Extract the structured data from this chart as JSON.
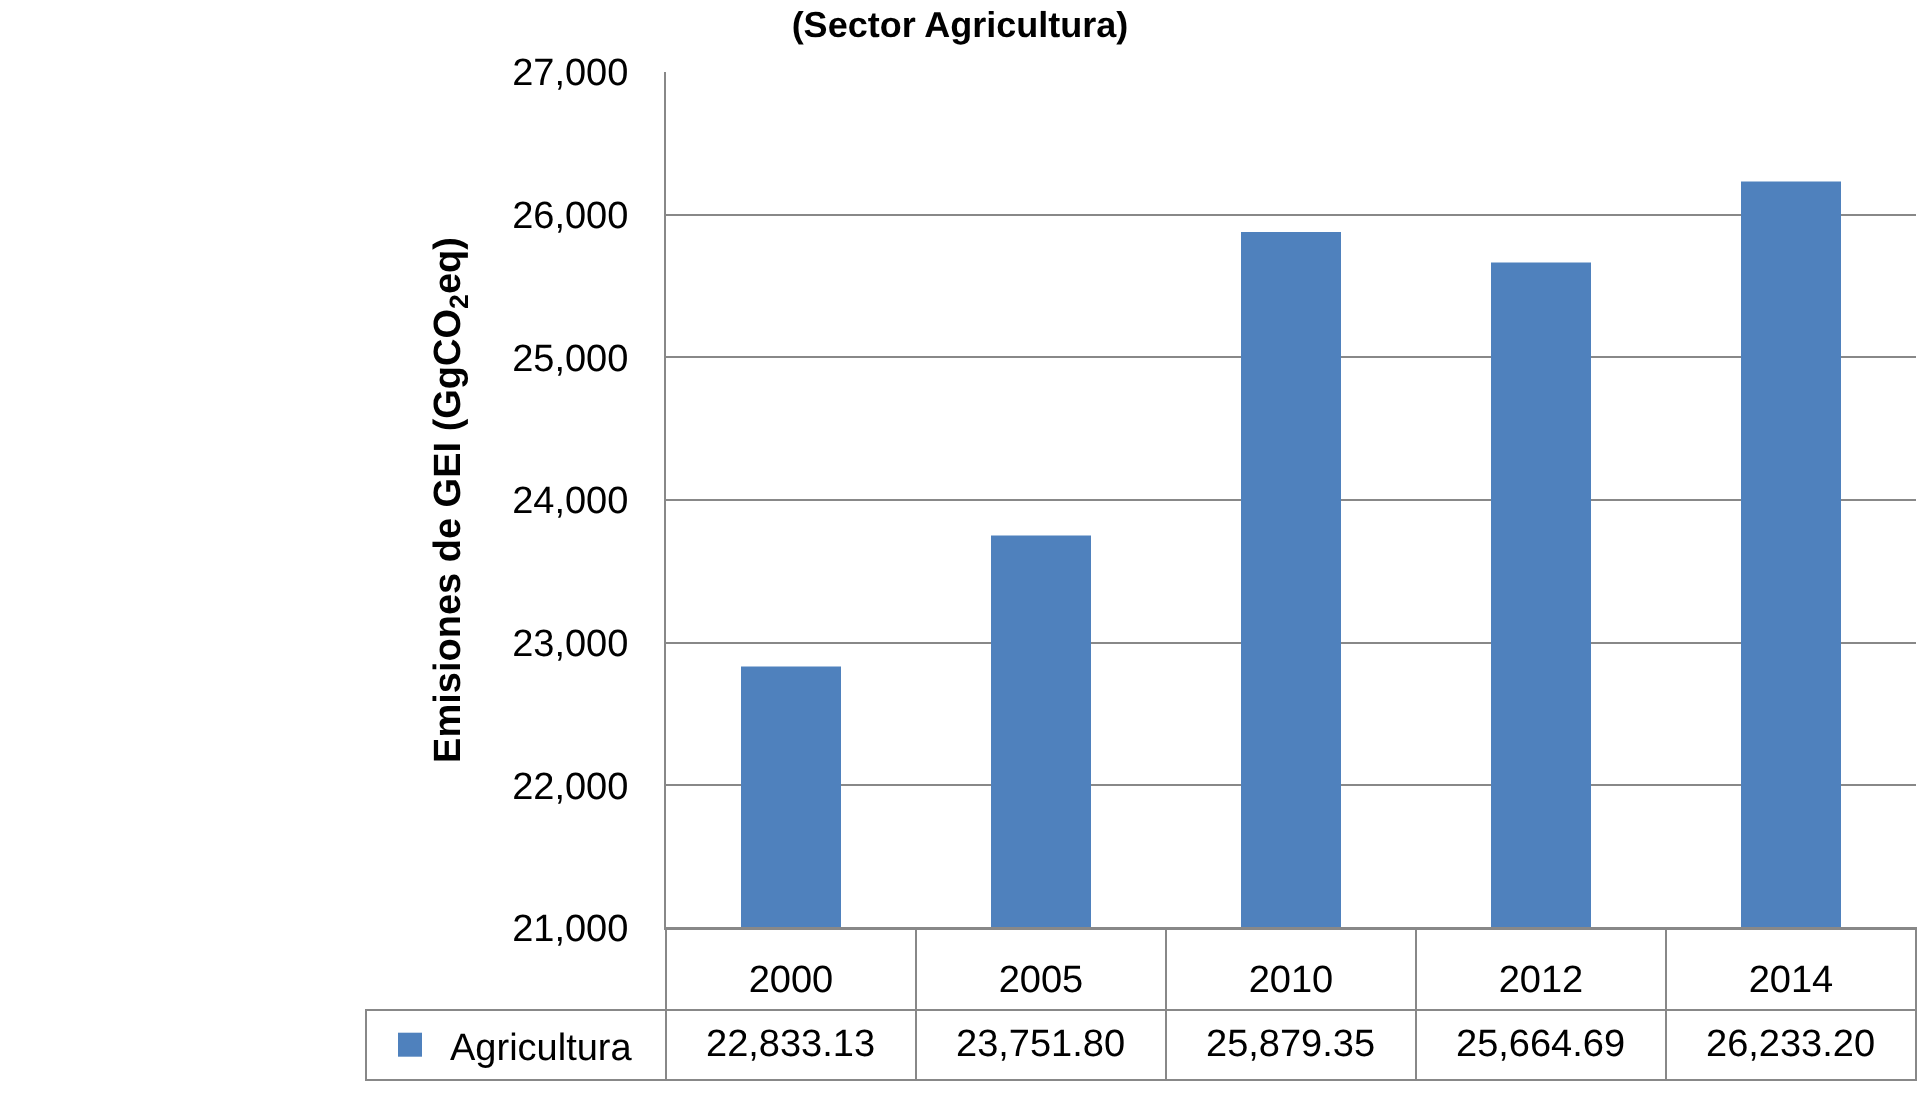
{
  "chart_data": {
    "type": "bar",
    "title": "(Sector Agricultura)",
    "ylabel": "Emisiones de GEI (GgCO$_{2}$eq)",
    "categories": [
      "2000",
      "2005",
      "2010",
      "2012",
      "2014"
    ],
    "series": [
      {
        "name": "Agricultura",
        "color": "#4f81bd",
        "values": [
          22833.13,
          23751.8,
          25879.35,
          25664.69,
          26233.2
        ]
      }
    ],
    "ylim": [
      21000,
      27000
    ],
    "yticks": [
      {
        "value": 21000,
        "label": "21,000"
      },
      {
        "value": 22000,
        "label": "22,000"
      },
      {
        "value": 23000,
        "label": "23,000"
      },
      {
        "value": 24000,
        "label": "24,000"
      },
      {
        "value": 25000,
        "label": "25,000"
      },
      {
        "value": 26000,
        "label": "26,000"
      },
      {
        "value": 27000,
        "label": "27,000"
      }
    ],
    "value_labels": [
      "22,833.13",
      "23,751.80",
      "25,879.35",
      "25,664.69",
      "26,233.20"
    ],
    "grid": "y",
    "legend": "bottom left"
  }
}
